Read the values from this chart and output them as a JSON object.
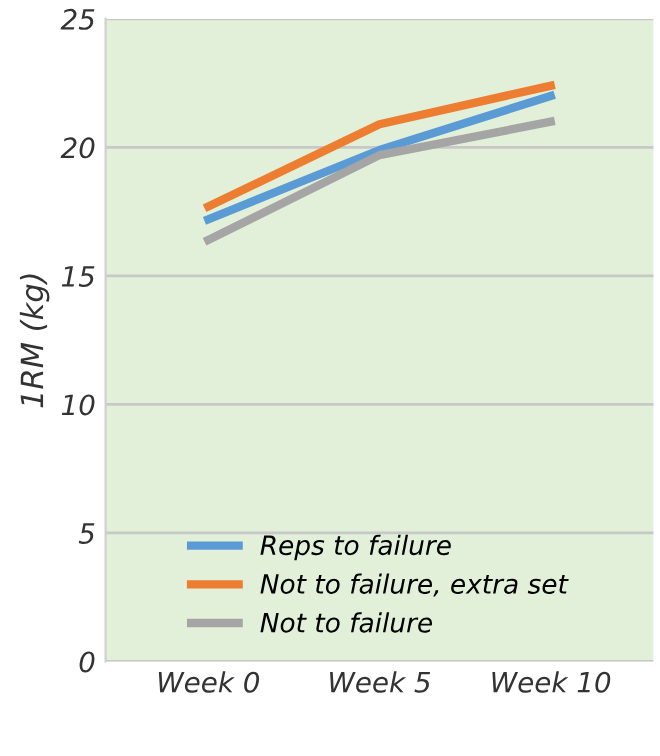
{
  "chart_data": {
    "type": "line",
    "ylabel": "1RM (kg)",
    "categories": [
      "Week 0",
      "Week 5",
      "Week 10"
    ],
    "series": [
      {
        "name": "Reps to failure",
        "color": "#5b9bd5",
        "values": [
          17.2,
          19.9,
          22.0
        ]
      },
      {
        "name": "Not to failure, extra set",
        "color": "#ed7d31",
        "values": [
          17.7,
          20.9,
          22.4
        ]
      },
      {
        "name": "Not to failure",
        "color": "#a5a5a5",
        "values": [
          16.4,
          19.7,
          21.0
        ]
      }
    ],
    "ylim": [
      0,
      25
    ],
    "yticks": [
      0,
      5,
      10,
      15,
      20,
      25
    ],
    "grid": "y",
    "legend": "bottom",
    "marker": "none",
    "line_style": "solid"
  }
}
